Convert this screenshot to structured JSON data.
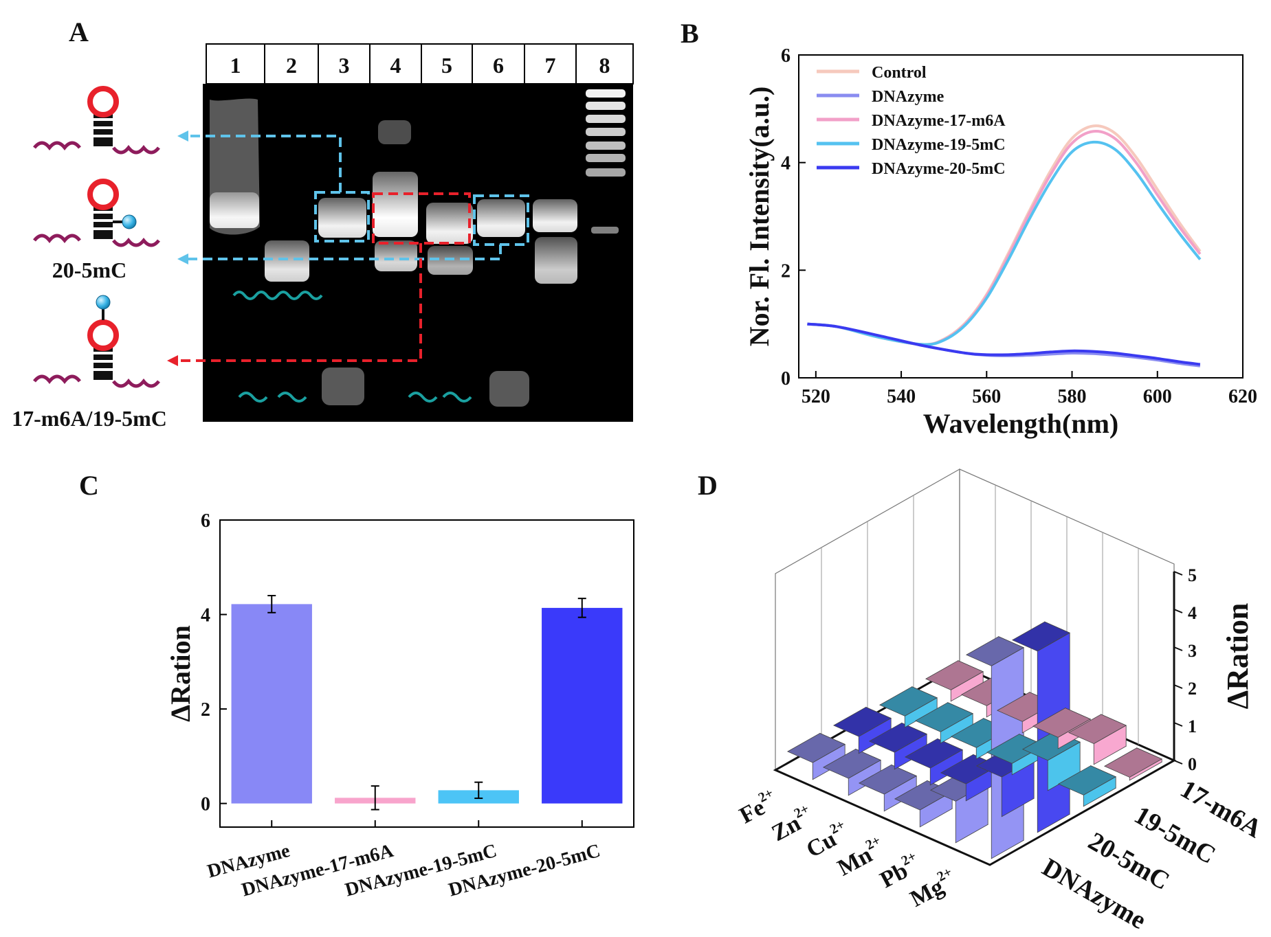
{
  "panel_labels": [
    "A",
    "B",
    "C",
    "D"
  ],
  "gel": {
    "lanes": [
      "1",
      "2",
      "3",
      "4",
      "5",
      "6",
      "7",
      "8"
    ],
    "structure_labels": [
      "20-5mC",
      "17-m6A/19-5mC"
    ],
    "colors": {
      "blue_box": "#5fc3ea",
      "red_box": "#e8212b",
      "loop": "#e8212b",
      "strand": "#8e1c5c",
      "teal": "#1aa0a0"
    }
  },
  "chart_data": [
    {
      "panel": "B",
      "type": "line",
      "xlabel": "Wavelength(nm)",
      "ylabel": "Nor. Fl. Intensity(a.u.)",
      "xlim": [
        516,
        620
      ],
      "ylim": [
        0,
        6
      ],
      "xticks": [
        520,
        540,
        560,
        580,
        600,
        620
      ],
      "yticks": [
        0,
        2,
        4,
        6
      ],
      "legend_position": "top-left",
      "series": [
        {
          "name": "Control",
          "color": "#f6c9bd",
          "x": [
            518,
            525,
            535,
            545,
            550,
            555,
            560,
            565,
            570,
            575,
            580,
            585,
            590,
            595,
            600,
            605,
            610
          ],
          "y": [
            1.0,
            0.95,
            0.75,
            0.62,
            0.72,
            1.02,
            1.55,
            2.3,
            3.1,
            3.85,
            4.45,
            4.68,
            4.55,
            4.1,
            3.5,
            2.9,
            2.35
          ]
        },
        {
          "name": "DNAzyme",
          "color": "#8a8cf0",
          "x": [
            518,
            525,
            535,
            545,
            555,
            560,
            565,
            570,
            575,
            580,
            585,
            590,
            595,
            600,
            605,
            610
          ],
          "y": [
            1.0,
            0.95,
            0.78,
            0.6,
            0.46,
            0.42,
            0.41,
            0.42,
            0.44,
            0.46,
            0.45,
            0.42,
            0.38,
            0.33,
            0.27,
            0.22
          ]
        },
        {
          "name": "DNAzyme-17-m6A",
          "color": "#f2a0c8",
          "x": [
            518,
            525,
            535,
            545,
            550,
            555,
            560,
            565,
            570,
            575,
            580,
            585,
            590,
            595,
            600,
            605,
            610
          ],
          "y": [
            1.0,
            0.95,
            0.75,
            0.62,
            0.71,
            1.0,
            1.52,
            2.25,
            3.05,
            3.78,
            4.36,
            4.58,
            4.45,
            4.0,
            3.4,
            2.82,
            2.3
          ]
        },
        {
          "name": "DNAzyme-19-5mC",
          "color": "#55c2f0",
          "x": [
            518,
            525,
            535,
            545,
            550,
            555,
            560,
            565,
            570,
            575,
            580,
            585,
            590,
            595,
            600,
            605,
            610
          ],
          "y": [
            1.0,
            0.95,
            0.75,
            0.62,
            0.7,
            0.98,
            1.48,
            2.18,
            2.95,
            3.65,
            4.2,
            4.38,
            4.25,
            3.82,
            3.25,
            2.7,
            2.2
          ]
        },
        {
          "name": "DNAzyme-20-5mC",
          "color": "#3a3af0",
          "x": [
            518,
            525,
            535,
            545,
            555,
            560,
            565,
            570,
            575,
            580,
            585,
            590,
            595,
            600,
            605,
            610
          ],
          "y": [
            1.0,
            0.95,
            0.78,
            0.6,
            0.46,
            0.43,
            0.43,
            0.45,
            0.48,
            0.5,
            0.49,
            0.46,
            0.41,
            0.36,
            0.3,
            0.25
          ]
        }
      ]
    },
    {
      "panel": "C",
      "type": "bar",
      "ylabel": "ΔRation",
      "xlabel": "",
      "ylim": [
        -0.5,
        6
      ],
      "yticks": [
        0,
        2,
        4,
        6
      ],
      "categories": [
        "DNAzyme",
        "DNAzyme-17-m6A",
        "DNAzyme-19-5mC",
        "DNAzyme-20-5mC"
      ],
      "values": [
        4.22,
        0.12,
        0.28,
        4.14
      ],
      "errors": [
        0.18,
        0.25,
        0.17,
        0.2
      ],
      "colors": [
        "#8888f6",
        "#f8a4cc",
        "#4cc4f6",
        "#3a3afa"
      ]
    },
    {
      "panel": "D",
      "type": "bar3d",
      "zlabel": "ΔRation",
      "zlim": [
        0,
        5
      ],
      "zticks": [
        0,
        1,
        2,
        3,
        4,
        5
      ],
      "ions": [
        "Mg",
        "Pb",
        "Mn",
        "Cu",
        "Zn",
        "Fe"
      ],
      "ion_charge": "2+",
      "series": [
        {
          "name": "17-m6A",
          "color": "#f8a8d0",
          "values": [
            0.08,
            0.55,
            0.3,
            0.3,
            0.3,
            0.3
          ]
        },
        {
          "name": "19-5mC",
          "color": "#4cc4ec",
          "values": [
            0.3,
            0.8,
            0.3,
            0.3,
            0.3,
            0.3
          ]
        },
        {
          "name": "20-5mC",
          "color": "#4848f0",
          "values": [
            4.8,
            1.05,
            0.45,
            0.45,
            0.45,
            0.45
          ]
        },
        {
          "name": "DNAzyme",
          "color": "#9494f4",
          "values": [
            5.1,
            1.1,
            0.45,
            0.45,
            0.45,
            0.45
          ]
        }
      ]
    }
  ]
}
